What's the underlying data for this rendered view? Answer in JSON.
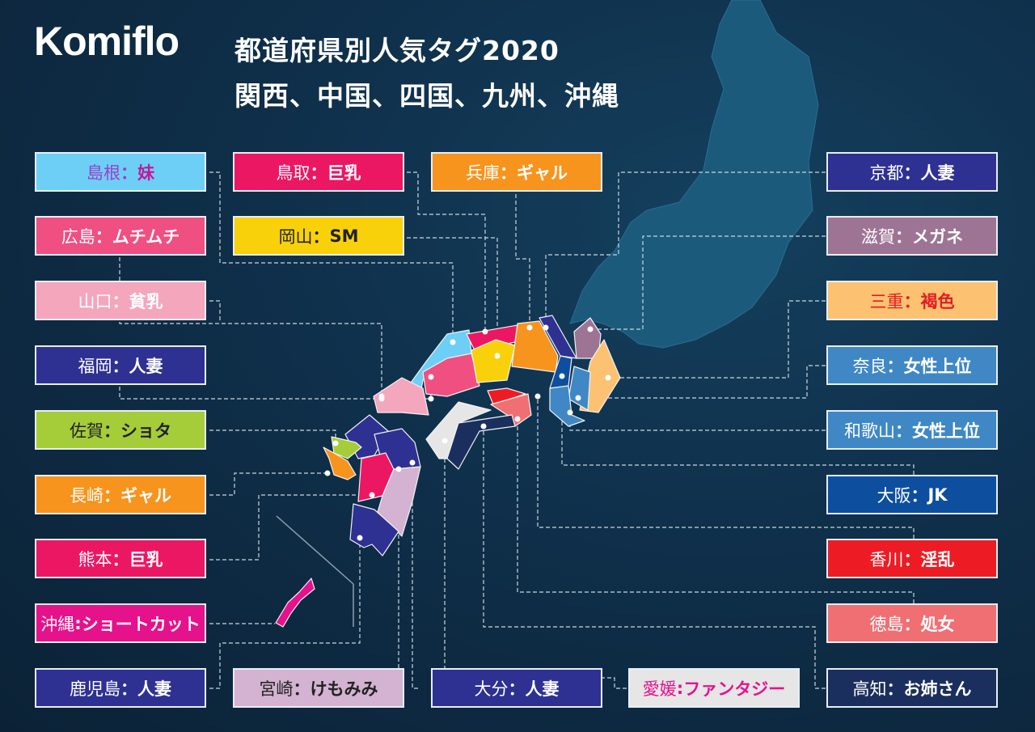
{
  "logo": "Komiflo",
  "title": "都道府県別人気タグ2020",
  "subtitle": "関西、中国、四国、九州、沖縄",
  "labels": [
    {
      "pref": "島根",
      "sep": "：",
      "tag": "妹",
      "bg": "#6dcff6",
      "prefColor": "#9b3fc8",
      "tagColor": "#c2199c"
    },
    {
      "pref": "広島",
      "sep": "：",
      "tag": "ムチムチ",
      "bg": "#ef4f81",
      "prefColor": "#ffffff",
      "tagColor": "#ffffff"
    },
    {
      "pref": "山口",
      "sep": "：",
      "tag": "貧乳",
      "bg": "#f4a6bc",
      "prefColor": "#ffffff",
      "tagColor": "#ffffff"
    },
    {
      "pref": "福岡",
      "sep": "：",
      "tag": "人妻",
      "bg": "#2e3192",
      "prefColor": "#ffffff",
      "tagColor": "#ffffff"
    },
    {
      "pref": "佐賀",
      "sep": "：",
      "tag": "ショタ",
      "bg": "#a5cd39",
      "prefColor": "#222222",
      "tagColor": "#222222"
    },
    {
      "pref": "長崎",
      "sep": "：",
      "tag": "ギャル",
      "bg": "#f7941d",
      "prefColor": "#ffffff",
      "tagColor": "#ffffff"
    },
    {
      "pref": "熊本",
      "sep": "：",
      "tag": "巨乳",
      "bg": "#ec1763",
      "prefColor": "#ffffff",
      "tagColor": "#ffffff"
    },
    {
      "pref": "沖縄",
      "sep": ":",
      "tag": "ショートカット",
      "bg": "#e5128c",
      "prefColor": "#ffffff",
      "tagColor": "#ffffff"
    },
    {
      "pref": "鹿児島",
      "sep": "：",
      "tag": "人妻",
      "bg": "#2e3192",
      "prefColor": "#ffffff",
      "tagColor": "#ffffff"
    },
    {
      "pref": "鳥取",
      "sep": "：",
      "tag": "巨乳",
      "bg": "#ec1763",
      "prefColor": "#ffffff",
      "tagColor": "#ffffff"
    },
    {
      "pref": "岡山",
      "sep": "：",
      "tag": "SM",
      "bg": "#f9d10b",
      "prefColor": "#222222",
      "tagColor": "#222222"
    },
    {
      "pref": "兵庫",
      "sep": "：",
      "tag": "ギャル",
      "bg": "#f7941d",
      "prefColor": "#ffffff",
      "tagColor": "#ffffff"
    },
    {
      "pref": "宮崎",
      "sep": "：",
      "tag": "けもみみ",
      "bg": "#d3b3d1",
      "prefColor": "#222222",
      "tagColor": "#222222"
    },
    {
      "pref": "大分",
      "sep": "：",
      "tag": "人妻",
      "bg": "#2e3192",
      "prefColor": "#ffffff",
      "tagColor": "#ffffff"
    },
    {
      "pref": "愛媛",
      "sep": ":",
      "tag": "ファンタジー",
      "bg": "#e6e6e6",
      "prefColor": "#e5128c",
      "tagColor": "#e5128c"
    },
    {
      "pref": "京都",
      "sep": "：",
      "tag": "人妻",
      "bg": "#2e3192",
      "prefColor": "#ffffff",
      "tagColor": "#ffffff"
    },
    {
      "pref": "滋賀",
      "sep": "：",
      "tag": "メガネ",
      "bg": "#9e7494",
      "prefColor": "#ffffff",
      "tagColor": "#ffffff"
    },
    {
      "pref": "三重",
      "sep": "：",
      "tag": "褐色",
      "bg": "#fcc272",
      "prefColor": "#e31e24",
      "tagColor": "#e31e24"
    },
    {
      "pref": "奈良",
      "sep": "：",
      "tag": "女性上位",
      "bg": "#3f88c5",
      "prefColor": "#ffffff",
      "tagColor": "#ffffff"
    },
    {
      "pref": "和歌山",
      "sep": "：",
      "tag": "女性上位",
      "bg": "#3f88c5",
      "prefColor": "#ffffff",
      "tagColor": "#ffffff"
    },
    {
      "pref": "大阪",
      "sep": "：",
      "tag": "JK",
      "bg": "#0d4f9e",
      "prefColor": "#ffffff",
      "tagColor": "#ffffff"
    },
    {
      "pref": "香川",
      "sep": "：",
      "tag": "淫乱",
      "bg": "#ed1c24",
      "prefColor": "#ffffff",
      "tagColor": "#ffffff"
    },
    {
      "pref": "徳島",
      "sep": "：",
      "tag": "処女",
      "bg": "#f06f73",
      "prefColor": "#ffffff",
      "tagColor": "#ffffff"
    },
    {
      "pref": "高知",
      "sep": "：",
      "tag": "お姉さん",
      "bg": "#1b2f5e",
      "prefColor": "#ffffff",
      "tagColor": "#ffffff"
    }
  ]
}
